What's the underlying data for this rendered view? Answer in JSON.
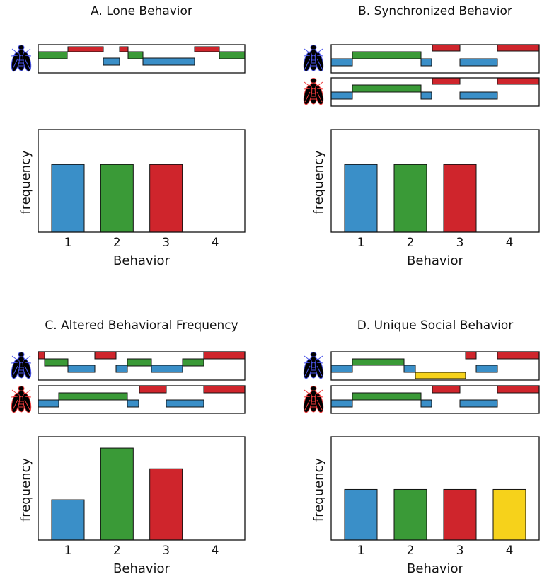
{
  "chart_data": [
    {
      "type": "bar",
      "title": "A. Lone Behavior",
      "xlabel": "Behavior",
      "ylabel": "frequency",
      "categories": [
        "1",
        "2",
        "3",
        "4"
      ],
      "values": [
        0.66,
        0.66,
        0.66,
        0
      ],
      "colors": [
        "#3a8fc8",
        "#3a9a37",
        "#cf252c",
        "#f6d21b"
      ],
      "ylim": [
        0,
        1
      ]
    },
    {
      "type": "bar",
      "title": "B. Synchronized Behavior",
      "xlabel": "Behavior",
      "ylabel": "frequency",
      "categories": [
        "1",
        "2",
        "3",
        "4"
      ],
      "values": [
        0.66,
        0.66,
        0.66,
        0
      ],
      "colors": [
        "#3a8fc8",
        "#3a9a37",
        "#cf252c",
        "#f6d21b"
      ],
      "ylim": [
        0,
        1
      ]
    },
    {
      "type": "bar",
      "title": "C. Altered Behavioral Frequency",
      "xlabel": "Behavior",
      "ylabel": "frequency",
      "categories": [
        "1",
        "2",
        "3",
        "4"
      ],
      "values": [
        0.39,
        0.89,
        0.69,
        0
      ],
      "colors": [
        "#3a8fc8",
        "#3a9a37",
        "#cf252c",
        "#f6d21b"
      ],
      "ylim": [
        0,
        1
      ]
    },
    {
      "type": "bar",
      "title": "D. Unique Social Behavior",
      "xlabel": "Behavior",
      "ylabel": "frequency",
      "categories": [
        "1",
        "2",
        "3",
        "4"
      ],
      "values": [
        0.49,
        0.49,
        0.49,
        0.49
      ],
      "colors": [
        "#3a8fc8",
        "#3a9a37",
        "#cf252c",
        "#f6d21b"
      ],
      "ylim": [
        0,
        1
      ]
    }
  ]
}
